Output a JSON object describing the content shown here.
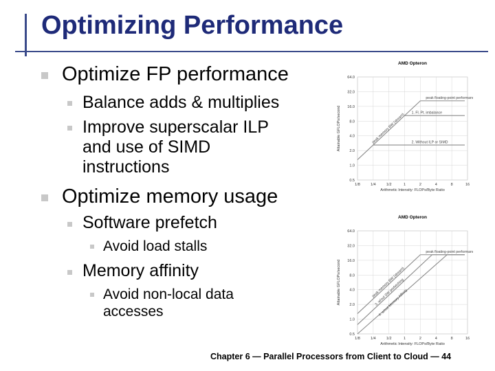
{
  "slide": {
    "title": "Optimizing Performance",
    "footer": "Chapter 6 — Parallel Processors from Client to Cloud — 44"
  },
  "bullets": {
    "fp": {
      "heading": "Optimize FP performance",
      "items": [
        "Balance adds & multiplies",
        "Improve superscalar ILP",
        "and use of SIMD",
        "instructions"
      ]
    },
    "mem": {
      "heading": "Optimize memory usage",
      "prefetch": "Software prefetch",
      "prefetch_sub": "Avoid load stalls",
      "affinity": "Memory affinity",
      "affinity_sub": [
        "Avoid non-local data",
        "accesses"
      ]
    }
  },
  "chart_data": [
    {
      "type": "line",
      "title": "AMD Opteron",
      "xlabel": "Arithmetic Intensity: FLOPs/Byte Ratio",
      "ylabel": "Attainable GFLOPs/second",
      "x_scale": "log2",
      "y_scale": "log2",
      "xticks": [
        "1/8",
        "1/4",
        "1/2",
        "1",
        "2",
        "4",
        "8",
        "16"
      ],
      "yticks": [
        "64.0",
        "32.0",
        "16.0",
        "8.0",
        "4.0",
        "2.0",
        "1.0",
        "0.5"
      ],
      "ceilings": [
        {
          "name": "peak floating-point performance",
          "y": 20.8
        },
        {
          "name": "1. Fl. Pt. imbalance",
          "y": 10.4
        },
        {
          "name": "2. Without ILP or SIMD",
          "y": 2.6
        }
      ],
      "roofline_label": "peak memory BW (stream)",
      "bandwidth_gbs": 10.4
    },
    {
      "type": "line",
      "title": "AMD Opteron",
      "xlabel": "Arithmetic Intensity: FLOPs/Byte Ratio",
      "ylabel": "Attainable GFLOPs/second",
      "x_scale": "log2",
      "y_scale": "log2",
      "xticks": [
        "1/8",
        "1/4",
        "1/2",
        "1",
        "2",
        "4",
        "8",
        "16"
      ],
      "yticks": [
        "64.0",
        "32.0",
        "16.0",
        "8.0",
        "4.0",
        "2.0",
        "1.0",
        "0.5"
      ],
      "ceilings": [
        {
          "name": "peak floating-point performance",
          "y": 20.8
        }
      ],
      "bandwidth_lines": [
        {
          "name": "peak memory BW (stream)",
          "gbs": 10.4
        },
        {
          "name": "3. w/out SW prefetching",
          "gbs": 6.2
        },
        {
          "name": "4. w/out Memory Affinity",
          "gbs": 3.2
        }
      ]
    }
  ]
}
